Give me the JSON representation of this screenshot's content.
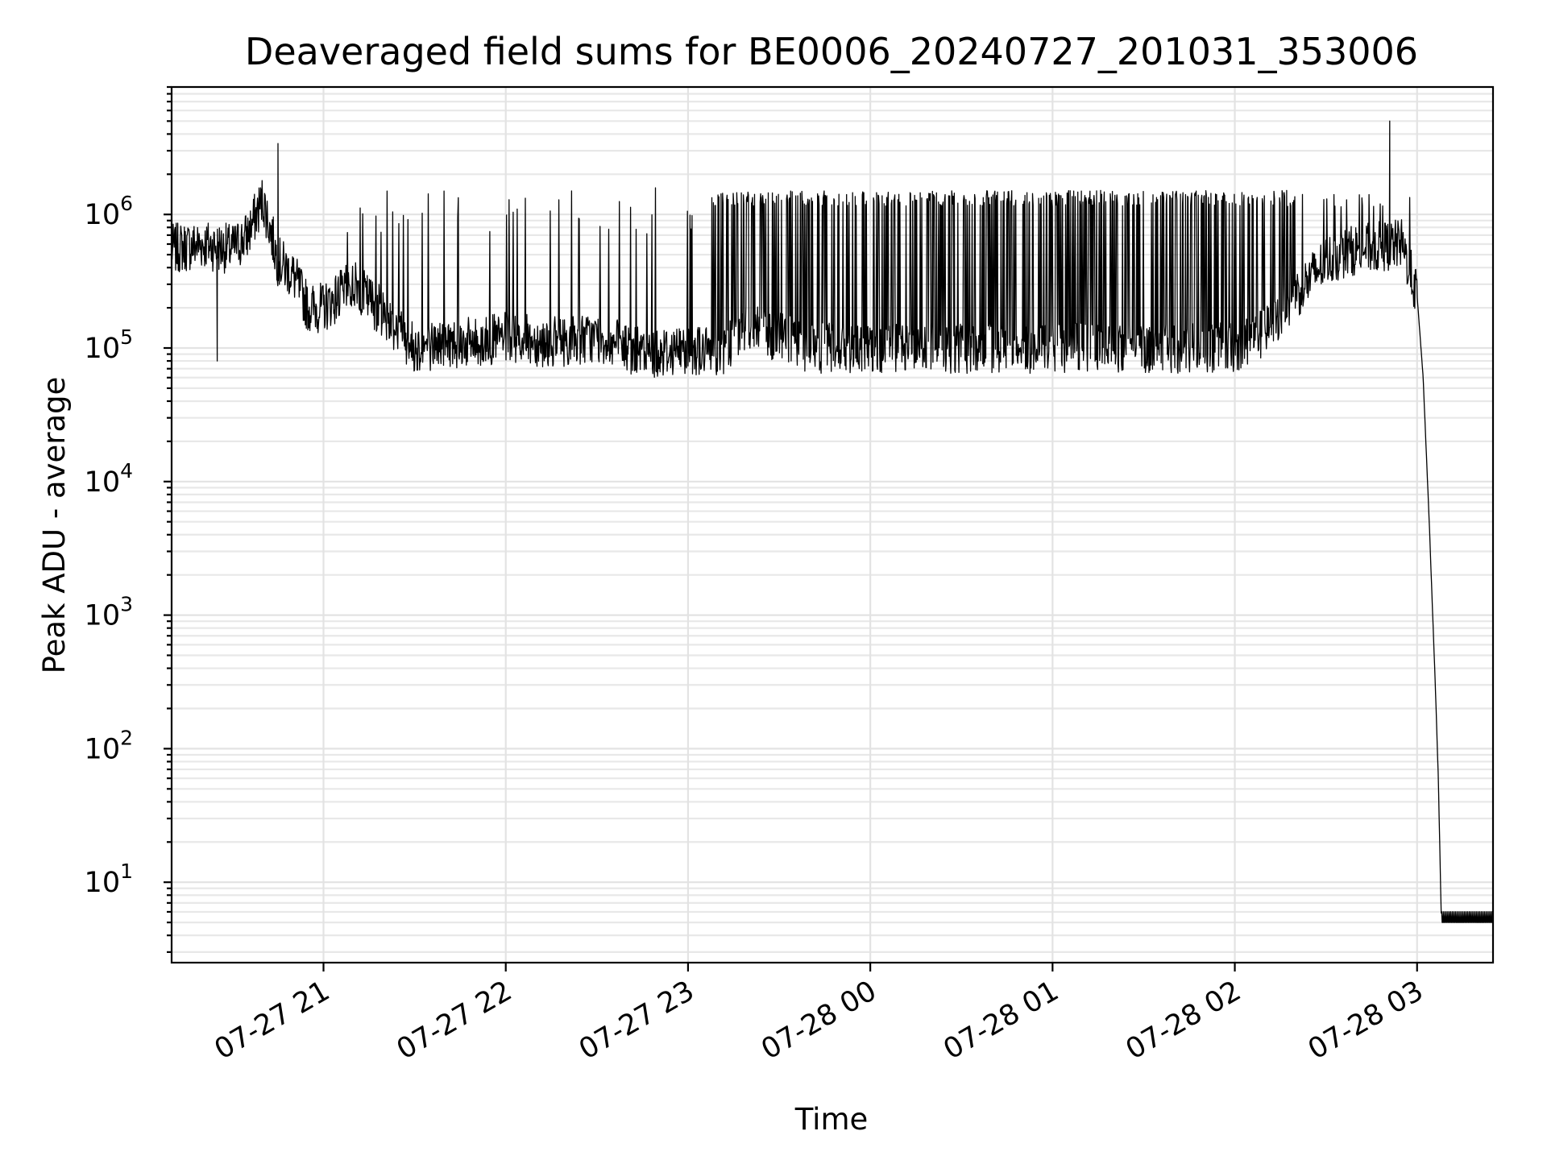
{
  "chart_data": {
    "type": "line",
    "title": "Deaveraged field sums for BE0006_20240727_201031_353006",
    "xlabel": "Time",
    "ylabel": "Peak ADU - average",
    "y_scale": "log",
    "ylim": [
      2.5,
      9000000
    ],
    "xlim": [
      "2024-07-27 20:10",
      "2024-07-28 03:25"
    ],
    "grid": true,
    "x_ticks": [
      "07-27 21",
      "07-27 22",
      "07-27 23",
      "07-28 00",
      "07-28 01",
      "07-28 02",
      "07-28 03"
    ],
    "x_tick_times": [
      "2024-07-27 21:00",
      "2024-07-27 22:00",
      "2024-07-27 23:00",
      "2024-07-28 00:00",
      "2024-07-28 01:00",
      "2024-07-28 02:00",
      "2024-07-28 03:00"
    ],
    "y_ticks": [
      {
        "base": "10",
        "exp": "1",
        "value": 10
      },
      {
        "base": "10",
        "exp": "2",
        "value": 100
      },
      {
        "base": "10",
        "exp": "3",
        "value": 1000
      },
      {
        "base": "10",
        "exp": "4",
        "value": 10000
      },
      {
        "base": "10",
        "exp": "5",
        "value": 100000
      },
      {
        "base": "10",
        "exp": "6",
        "value": 1000000
      }
    ],
    "series": [
      {
        "color": "#000000",
        "x": [
          "2024-07-27 20:10",
          "2024-07-27 20:20",
          "2024-07-27 20:30",
          "2024-07-27 20:35",
          "2024-07-27 20:40",
          "2024-07-27 20:45",
          "2024-07-27 20:50",
          "2024-07-27 20:55",
          "2024-07-27 21:00",
          "2024-07-27 21:10",
          "2024-07-27 21:20",
          "2024-07-27 21:30",
          "2024-07-27 21:40",
          "2024-07-27 21:50",
          "2024-07-27 22:00",
          "2024-07-27 22:15",
          "2024-07-27 22:30",
          "2024-07-27 22:45",
          "2024-07-27 23:00",
          "2024-07-27 23:10",
          "2024-07-27 23:20",
          "2024-07-27 23:30",
          "2024-07-27 23:40",
          "2024-07-27 23:50",
          "2024-07-28 00:00",
          "2024-07-28 00:15",
          "2024-07-28 00:30",
          "2024-07-28 00:45",
          "2024-07-28 01:00",
          "2024-07-28 01:15",
          "2024-07-28 01:30",
          "2024-07-28 01:45",
          "2024-07-28 02:00",
          "2024-07-28 02:10",
          "2024-07-28 02:20",
          "2024-07-28 02:30",
          "2024-07-28 02:40",
          "2024-07-28 02:50",
          "2024-07-28 02:55",
          "2024-07-28 03:00",
          "2024-07-28 03:02",
          "2024-07-28 03:04",
          "2024-07-28 03:06",
          "2024-07-28 03:07",
          "2024-07-28 03:08",
          "2024-07-28 03:10",
          "2024-07-28 03:25"
        ],
        "y": [
          550000,
          600000,
          550000,
          700000,
          1300000,
          450000,
          350000,
          200000,
          200000,
          300000,
          180000,
          100000,
          110000,
          110000,
          120000,
          110000,
          120000,
          90000,
          100000,
          90000,
          150000,
          120000,
          100000,
          100000,
          100000,
          100000,
          100000,
          100000,
          100000,
          100000,
          100000,
          100000,
          100000,
          130000,
          250000,
          450000,
          550000,
          580000,
          600000,
          250000,
          60000,
          5000,
          300,
          60,
          5,
          5,
          5
        ]
      }
    ],
    "annotations_spikes_note": ""
  }
}
